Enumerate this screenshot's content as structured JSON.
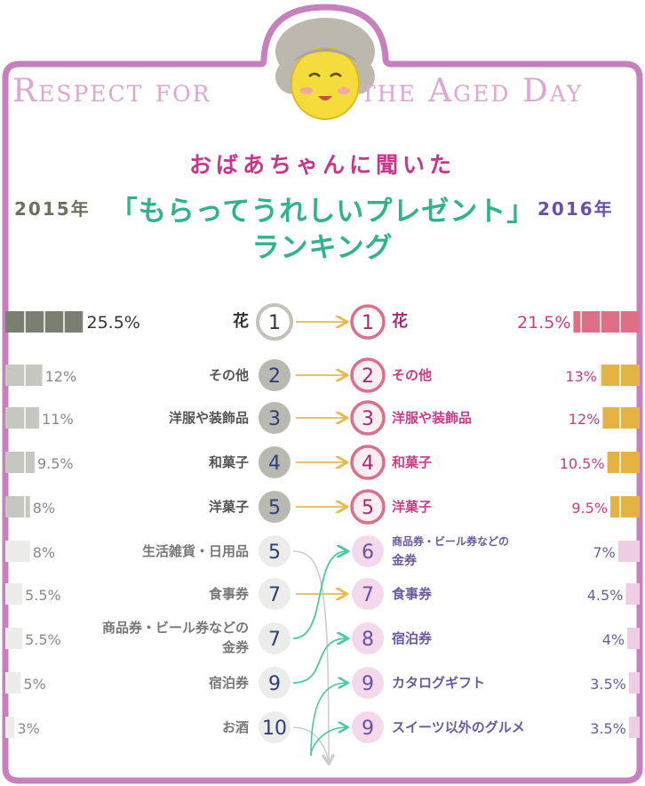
{
  "banner": {
    "left_text": "Respect for",
    "right_text": "the Aged Day"
  },
  "heading": {
    "subtitle": "おばあちゃんに聞いた",
    "title": "「もらってうれしいプレゼント」",
    "title2": "ランキング",
    "year_left": "2015年",
    "year_right": "2016年"
  },
  "colors": {
    "frame": "#c680bd",
    "arrow_same": "#e8b94c",
    "arrow_up": "#4ec7a4",
    "arrow_down": "#cccccc",
    "bar_2015_top": "#7a7f72",
    "bar_2016_top": "#de6f86",
    "bar_2016_mid": "#e4b443",
    "bar_2016_low": "#efcde3"
  },
  "chart_data": {
    "type": "bar",
    "title": "「もらってうれしいプレゼント」ランキング",
    "series": [
      {
        "name": "2015年",
        "items": [
          {
            "rank": "1",
            "label": "花",
            "value": 25.5,
            "value_label": "25.5%"
          },
          {
            "rank": "2",
            "label": "その他",
            "value": 12,
            "value_label": "12%"
          },
          {
            "rank": "3",
            "label": "洋服や装飾品",
            "value": 11,
            "value_label": "11%"
          },
          {
            "rank": "4",
            "label": "和菓子",
            "value": 9.5,
            "value_label": "9.5%"
          },
          {
            "rank": "5",
            "label": "洋菓子",
            "value": 8,
            "value_label": "8%"
          },
          {
            "rank": "5",
            "label": "生活雑貨・日用品",
            "value": 8,
            "value_label": "8%"
          },
          {
            "rank": "7",
            "label": "食事券",
            "value": 5.5,
            "value_label": "5.5%"
          },
          {
            "rank": "7",
            "label": "商品券・ビール券などの金券",
            "value": 5.5,
            "value_label": "5.5%"
          },
          {
            "rank": "9",
            "label": "宿泊券",
            "value": 5,
            "value_label": "5%"
          },
          {
            "rank": "10",
            "label": "お酒",
            "value": 3,
            "value_label": "3%"
          }
        ]
      },
      {
        "name": "2016年",
        "items": [
          {
            "rank": "1",
            "label": "花",
            "value": 21.5,
            "value_label": "21.5%"
          },
          {
            "rank": "2",
            "label": "その他",
            "value": 13,
            "value_label": "13%"
          },
          {
            "rank": "3",
            "label": "洋服や装飾品",
            "value": 12,
            "value_label": "12%"
          },
          {
            "rank": "4",
            "label": "和菓子",
            "value": 10.5,
            "value_label": "10.5%"
          },
          {
            "rank": "5",
            "label": "洋菓子",
            "value": 9.5,
            "value_label": "9.5%"
          },
          {
            "rank": "6",
            "label": "商品券・ビール券などの金券",
            "value": 7,
            "value_label": "7%"
          },
          {
            "rank": "7",
            "label": "食事券",
            "value": 4.5,
            "value_label": "4.5%"
          },
          {
            "rank": "8",
            "label": "宿泊券",
            "value": 4,
            "value_label": "4%"
          },
          {
            "rank": "9",
            "label": "カタログギフト",
            "value": 3.5,
            "value_label": "3.5%"
          },
          {
            "rank": "9",
            "label": "スイーツ以外のグルメ",
            "value": 3.5,
            "value_label": "3.5%"
          }
        ]
      }
    ],
    "links": [
      [
        0,
        0
      ],
      [
        1,
        1
      ],
      [
        2,
        2
      ],
      [
        3,
        3
      ],
      [
        4,
        4
      ],
      [
        5,
        -1
      ],
      [
        6,
        6
      ],
      [
        7,
        5
      ],
      [
        8,
        7
      ],
      [
        9,
        -1
      ],
      [
        -1,
        8
      ],
      [
        -1,
        9
      ]
    ]
  }
}
